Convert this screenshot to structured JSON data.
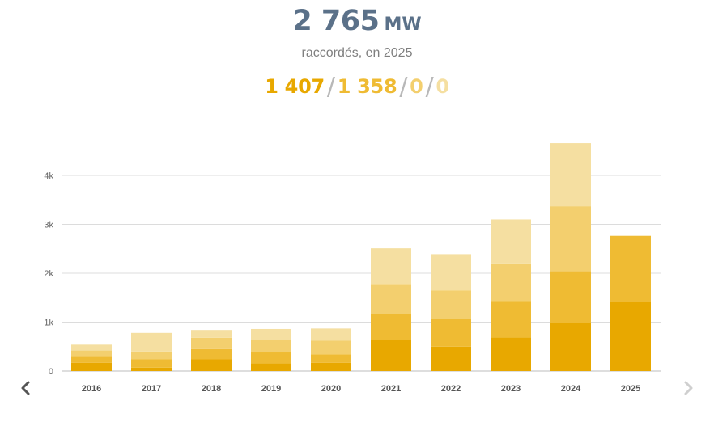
{
  "header": {
    "total_value": "2 765",
    "unit": "MW",
    "subtitle": "raccordés, en 2025",
    "breakdown": [
      {
        "label": "1 407",
        "color": "#e8a800"
      },
      {
        "label": "1 358",
        "color": "#efbb33"
      },
      {
        "label": "0",
        "color": "#f3cf6e"
      },
      {
        "label": "0",
        "color": "#f5dfa1"
      }
    ],
    "separator": "/"
  },
  "navigation": {
    "prev_icon": "chevron-left-icon",
    "next_icon": "chevron-right-icon"
  },
  "chart_data": {
    "type": "bar",
    "stacked": true,
    "categories": [
      "2016",
      "2017",
      "2018",
      "2019",
      "2020",
      "2021",
      "2022",
      "2023",
      "2024",
      "2025"
    ],
    "series": [
      {
        "color": "#e8a800",
        "values": [
          170,
          70,
          240,
          160,
          170,
          630,
          500,
          690,
          980,
          1407
        ]
      },
      {
        "color": "#efbb33",
        "values": [
          140,
          170,
          210,
          220,
          170,
          540,
          570,
          740,
          1060,
          1358
        ]
      },
      {
        "color": "#f3cf6e",
        "values": [
          110,
          160,
          230,
          260,
          280,
          610,
          580,
          770,
          1330,
          0
        ]
      },
      {
        "color": "#f5dfa1",
        "values": [
          120,
          380,
          160,
          220,
          250,
          730,
          740,
          900,
          1290,
          0
        ]
      }
    ],
    "ylim": [
      0,
      4700
    ],
    "yticks": [
      0,
      1000,
      2000,
      3000,
      4000
    ],
    "ytick_labels": [
      "0",
      "1k",
      "2k",
      "3k",
      "4k"
    ],
    "grid": true
  }
}
